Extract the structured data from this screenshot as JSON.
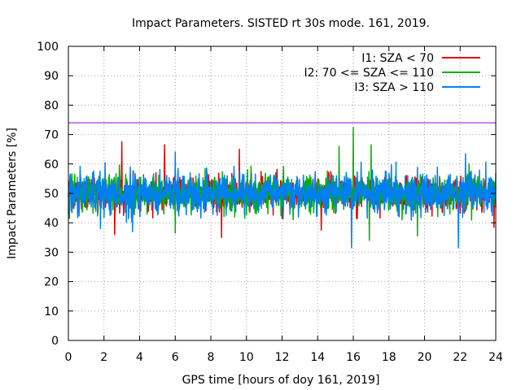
{
  "chart_data": {
    "type": "line",
    "title": "Impact Parameters. SISTED rt 30s mode. 161, 2019.",
    "xlabel": "GPS time [hours of doy 161, 2019]",
    "ylabel": "Impact Parameters [%]",
    "xlim": [
      0,
      24
    ],
    "ylim": [
      0,
      100
    ],
    "xticks": [
      0,
      2,
      4,
      6,
      8,
      10,
      12,
      14,
      16,
      18,
      20,
      22,
      24
    ],
    "yticks": [
      0,
      10,
      20,
      30,
      40,
      50,
      60,
      70,
      80,
      90,
      100
    ],
    "grid": true,
    "legend_position": "top-right",
    "threshold": {
      "value": 74,
      "color": "#9400d3"
    },
    "series": [
      {
        "name": "I1: SZA < 70",
        "color": "#e00000",
        "mean": 50,
        "typical_range": [
          44,
          58
        ],
        "extremes": [
          {
            "hour": 3.0,
            "value": 67.5
          },
          {
            "hour": 5.4,
            "value": 66.5
          },
          {
            "hour": 9.6,
            "value": 65.0
          },
          {
            "hour": 8.6,
            "value": 35.0
          },
          {
            "hour": 2.6,
            "value": 36.0
          },
          {
            "hour": 14.2,
            "value": 37.5
          },
          {
            "hour": 23.9,
            "value": 38.5
          }
        ]
      },
      {
        "name": "I2: 70 <= SZA <= 110",
        "color": "#00b000",
        "mean": 50,
        "typical_range": [
          43,
          58
        ],
        "extremes": [
          {
            "hour": 16.0,
            "value": 72.5
          },
          {
            "hour": 15.2,
            "value": 66.0
          },
          {
            "hour": 17.0,
            "value": 66.5
          },
          {
            "hour": 16.9,
            "value": 34.0
          },
          {
            "hour": 19.6,
            "value": 35.5
          },
          {
            "hour": 6.0,
            "value": 36.5
          }
        ]
      },
      {
        "name": "I3: SZA > 110",
        "color": "#0080f0",
        "mean": 50,
        "typical_range": [
          42,
          59
        ],
        "extremes": [
          {
            "hour": 15.9,
            "value": 31.5
          },
          {
            "hour": 21.9,
            "value": 31.5
          },
          {
            "hour": 22.3,
            "value": 33.5
          },
          {
            "hour": 3.6,
            "value": 37.0
          },
          {
            "hour": 1.8,
            "value": 38.0
          },
          {
            "hour": 6.0,
            "value": 64.0
          },
          {
            "hour": 22.3,
            "value": 63.5
          }
        ]
      }
    ]
  }
}
